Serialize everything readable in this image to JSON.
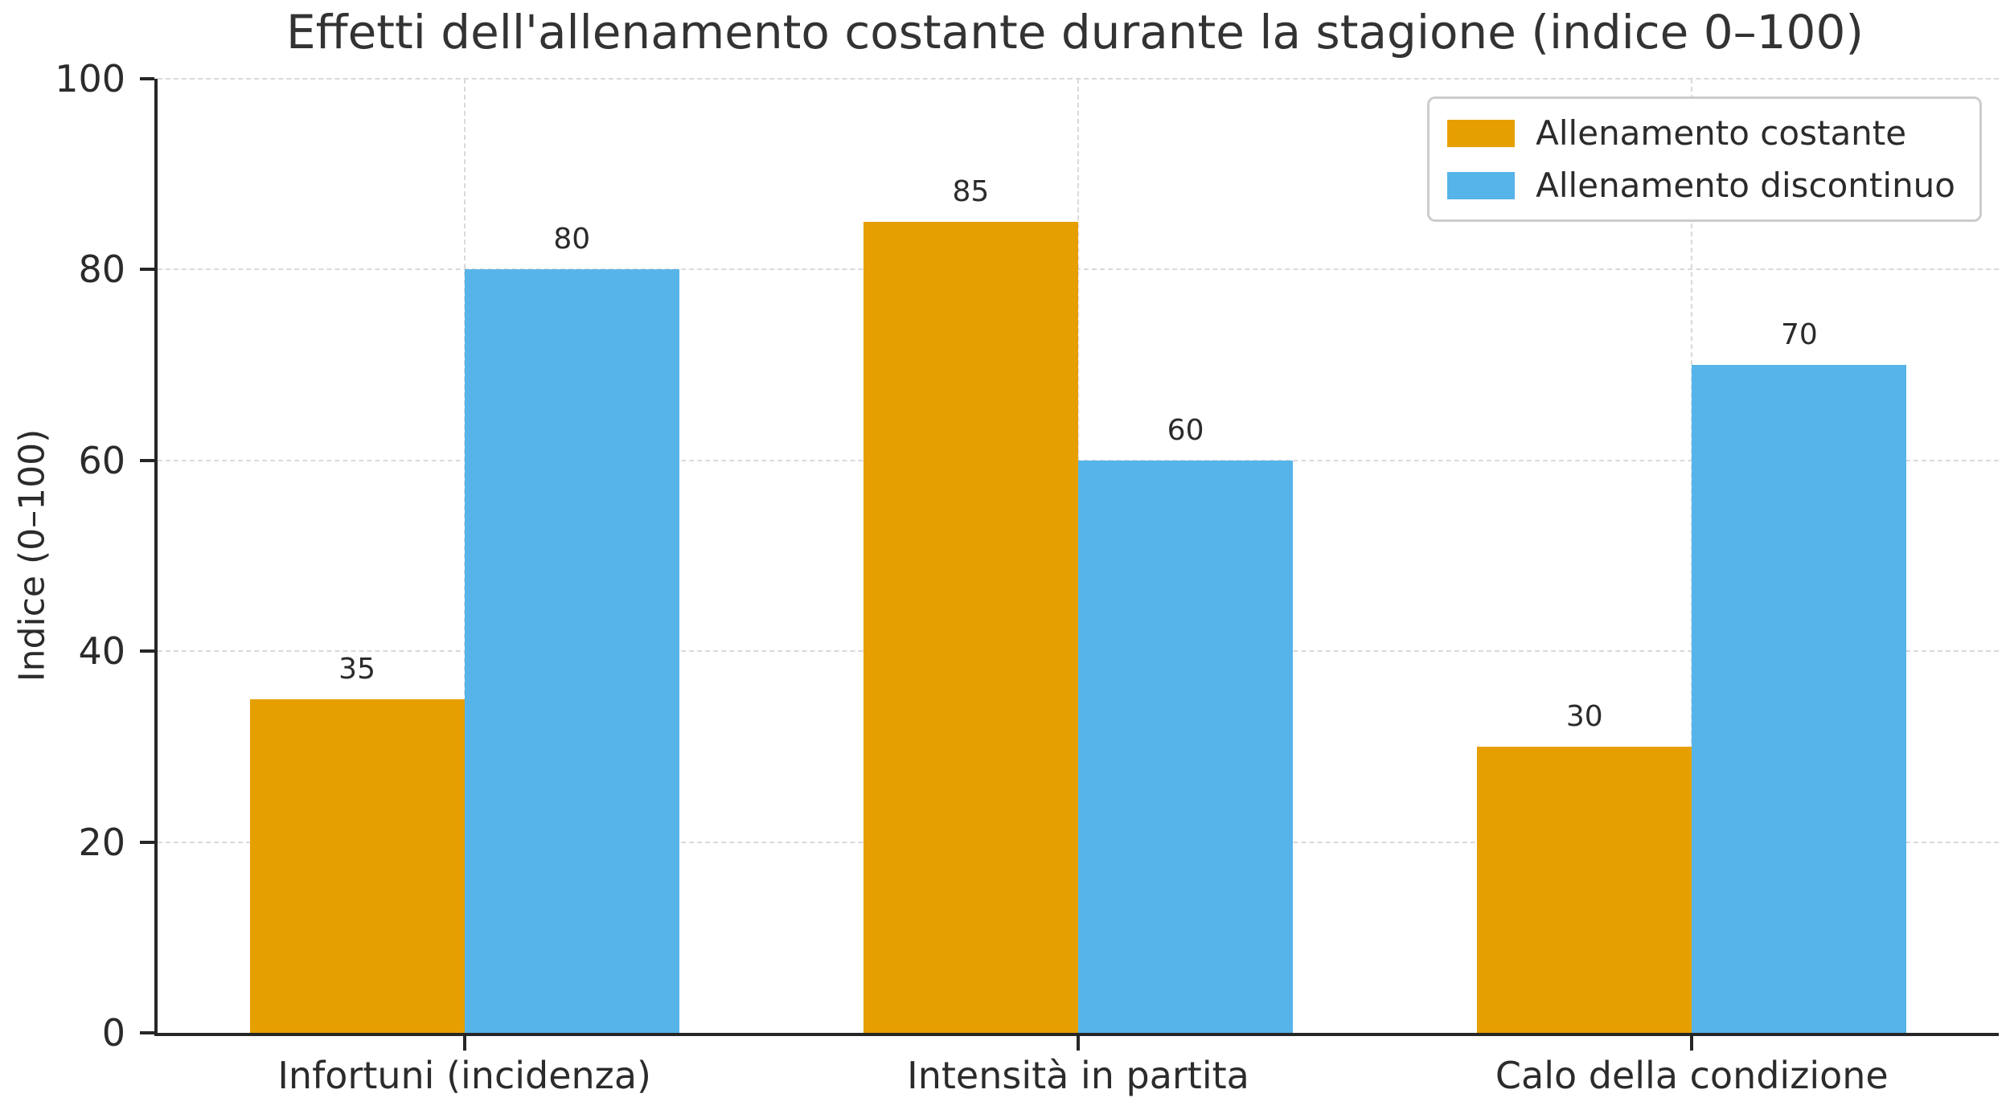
{
  "figure": {
    "title": "Effetti dell'allenamento costante durante la stagione (indice 0–100)"
  },
  "chart_data": {
    "type": "bar",
    "title": "Effetti dell'allenamento costante durante la stagione (indice 0–100)",
    "xlabel": "",
    "ylabel": "Indice (0–100)",
    "categories": [
      "Infortuni (incidenza)",
      "Intensità in partita",
      "Calo della condizione"
    ],
    "series": [
      {
        "name": "Allenamento costante",
        "color": "#E69F00",
        "values": [
          35,
          85,
          30
        ]
      },
      {
        "name": "Allenamento discontinuo",
        "color": "#56B4E9",
        "values": [
          80,
          60,
          70
        ]
      }
    ],
    "ylim": [
      0,
      100
    ],
    "yticks": [
      0,
      20,
      40,
      60,
      80,
      100
    ],
    "bar_width_fraction": 0.35,
    "value_labels_shown": true,
    "grid": "dashed, horizontal at yticks and vertical at category centers",
    "legend_position": "upper right"
  },
  "colors": {
    "bar_orange": "#E69F00",
    "bar_blue": "#56B4E9",
    "text": "#2b2b2b",
    "grid": "#d9d9d9",
    "spine": "#262626",
    "legend_border": "#cccccc",
    "background": "#ffffff"
  }
}
